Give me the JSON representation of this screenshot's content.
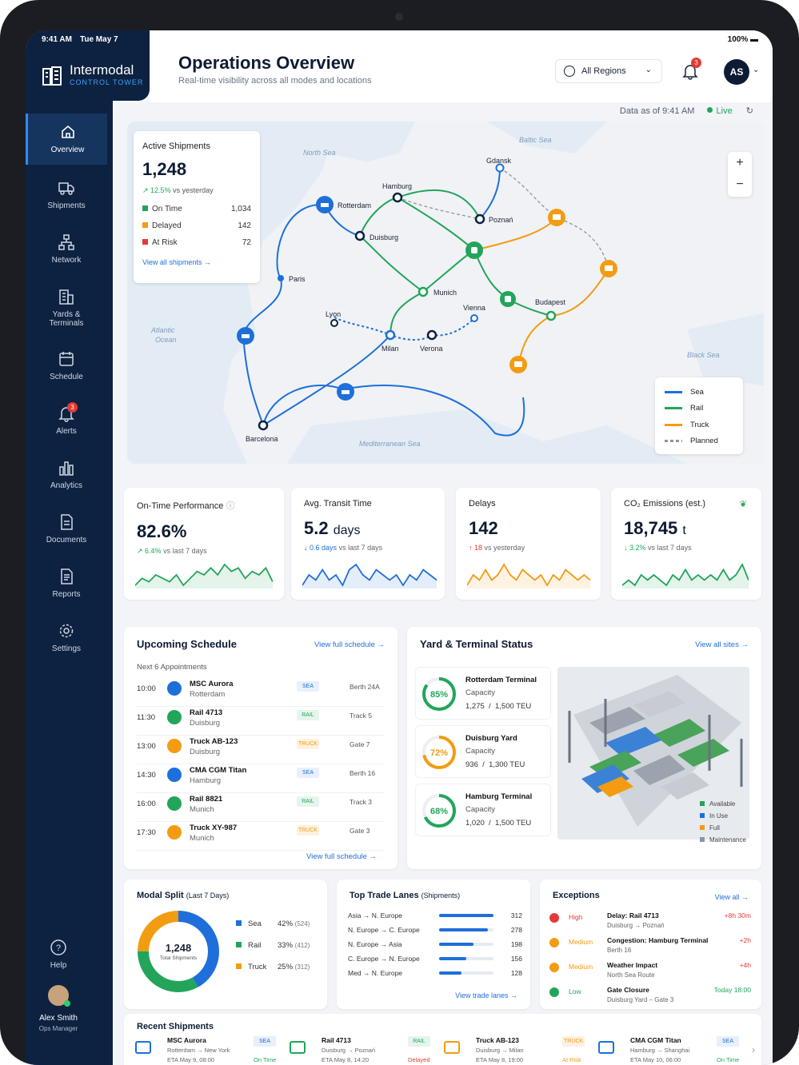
{
  "status_bar": {
    "time": "9:41 AM",
    "date": "Tue May 7",
    "battery": "100%"
  },
  "brand": {
    "name": "Intermodal",
    "sub": "CONTROL TOWER"
  },
  "sidebar": {
    "items": [
      {
        "label": "Overview",
        "icon": "home-icon"
      },
      {
        "label": "Shipments",
        "icon": "truck-icon"
      },
      {
        "label": "Network",
        "icon": "network-icon"
      },
      {
        "label": "Yards & Terminals",
        "icon": "building-icon"
      },
      {
        "label": "Schedule",
        "icon": "calendar-icon"
      },
      {
        "label": "Alerts",
        "icon": "bell-icon",
        "badge": "3"
      },
      {
        "label": "Analytics",
        "icon": "bar-chart-icon"
      },
      {
        "label": "Documents",
        "icon": "document-icon"
      },
      {
        "label": "Reports",
        "icon": "report-icon"
      },
      {
        "label": "Settings",
        "icon": "gear-icon"
      }
    ],
    "help": "Help",
    "user": {
      "name": "Alex Smith",
      "role": "Ops Manager"
    }
  },
  "header": {
    "title": "Operations Overview",
    "subtitle": "Real-time visibility across all modes and locations",
    "region": "All Regions",
    "notifications": "3",
    "initials": "AS"
  },
  "asof": {
    "label": "Data as of 9:41 AM",
    "live": "Live"
  },
  "map": {
    "seas": [
      "North Sea",
      "Baltic Sea",
      "Atlantic Ocean",
      "Black Sea",
      "Mediterranean Sea"
    ],
    "cities": [
      "Gdansk",
      "Hamburg",
      "Rotterdam",
      "Poznań",
      "Duisburg",
      "Paris",
      "Munich",
      "Vienna",
      "Budapest",
      "Lyon",
      "Milan",
      "Verona",
      "Barcelona"
    ],
    "legend": [
      "Sea",
      "Rail",
      "Truck",
      "Planned"
    ],
    "colors": {
      "sea": "#1e6fd9",
      "rail": "#22a55a",
      "truck": "#f39c12",
      "planned": "#8a96a8"
    }
  },
  "active_shipments": {
    "title": "Active Shipments",
    "value": "1,248",
    "trend": "12.5%",
    "trend_label": "vs yesterday",
    "rows": [
      {
        "label": "On Time",
        "value": "1,034"
      },
      {
        "label": "Delayed",
        "value": "142"
      },
      {
        "label": "At Risk",
        "value": "72"
      }
    ],
    "link": "View all shipments"
  },
  "kpis": [
    {
      "title": "On-Time Performance",
      "value": "82.6%",
      "unit": "",
      "trend": "6.4%",
      "trend_label": "vs last 7 days",
      "color": "#22a55a",
      "series": [
        3,
        5,
        4,
        6,
        5,
        4,
        6,
        3,
        5,
        7,
        6,
        8,
        6,
        9,
        7,
        8,
        5,
        7,
        6,
        8,
        4
      ]
    },
    {
      "title": "Avg. Transit Time",
      "value": "5.2",
      "unit": "days",
      "trend": "0.6 days",
      "trend_label": "vs last 7 days",
      "color": "#1e6fd9",
      "series": [
        4,
        6,
        5,
        7,
        5,
        6,
        4,
        7,
        8,
        6,
        5,
        7,
        6,
        5,
        6,
        4,
        6,
        5,
        7,
        6,
        5
      ]
    },
    {
      "title": "Delays",
      "value": "142",
      "unit": "",
      "trend": "18",
      "trend_label": "vs yesterday",
      "color": "#f39c12",
      "series": [
        4,
        6,
        5,
        7,
        5,
        6,
        8,
        6,
        5,
        7,
        6,
        5,
        6,
        4,
        6,
        5,
        7,
        6,
        5,
        6,
        5
      ]
    },
    {
      "title": "CO₂ Emissions (est.)",
      "value": "18,745",
      "unit": "t",
      "trend": "3.2%",
      "trend_label": "vs last 7 days",
      "color": "#22a55a",
      "series": [
        4,
        5,
        4,
        6,
        5,
        6,
        5,
        4,
        6,
        5,
        7,
        5,
        6,
        5,
        6,
        5,
        7,
        5,
        6,
        8,
        5
      ]
    }
  ],
  "schedule": {
    "title": "Upcoming Schedule",
    "link": "View full schedule",
    "subtitle": "Next 6 Appointments",
    "rows": [
      {
        "time": "10:00",
        "name": "MSC Aurora",
        "loc": "Rotterdam",
        "mode": "SEA",
        "slot": "Berth 24A"
      },
      {
        "time": "11:30",
        "name": "Rail 4713",
        "loc": "Duisburg",
        "mode": "RAIL",
        "slot": "Track 5"
      },
      {
        "time": "13:00",
        "name": "Truck AB-123",
        "loc": "Duisburg",
        "mode": "TRUCK",
        "slot": "Gate 7"
      },
      {
        "time": "14:30",
        "name": "CMA CGM Titan",
        "loc": "Hamburg",
        "mode": "SEA",
        "slot": "Berth 16"
      },
      {
        "time": "16:00",
        "name": "Rail 8821",
        "loc": "Munich",
        "mode": "RAIL",
        "slot": "Track 3"
      },
      {
        "time": "17:30",
        "name": "Truck XY-987",
        "loc": "Munich",
        "mode": "TRUCK",
        "slot": "Gate 3"
      }
    ],
    "footer_link": "View full schedule"
  },
  "yard": {
    "title": "Yard & Terminal Status",
    "link": "View all sites",
    "items": [
      {
        "name": "Rotterdam Terminal",
        "cap_label": "Capacity",
        "used": "1,275",
        "total": "1,500 TEU",
        "pct": "85%",
        "fraction": 0.85,
        "color": "#22a55a"
      },
      {
        "name": "Duisburg Yard",
        "cap_label": "Capacity",
        "used": "936",
        "total": "1,300 TEU",
        "pct": "72%",
        "fraction": 0.72,
        "color": "#f39c12"
      },
      {
        "name": "Hamburg Terminal",
        "cap_label": "Capacity",
        "used": "1,020",
        "total": "1,500 TEU",
        "pct": "68%",
        "fraction": 0.68,
        "color": "#22a55a"
      }
    ],
    "legend": [
      "Available",
      "In Use",
      "Full",
      "Maintenance"
    ]
  },
  "modal_split": {
    "title": "Modal Split",
    "period": "(Last 7 Days)",
    "total": "1,248",
    "total_label": "Total Shipments",
    "items": [
      {
        "label": "Sea",
        "pct": "42%",
        "count": "(524)",
        "value": 524,
        "color": "#1e6fd9"
      },
      {
        "label": "Rail",
        "pct": "33%",
        "count": "(412)",
        "value": 412,
        "color": "#22a55a"
      },
      {
        "label": "Truck",
        "pct": "25%",
        "count": "(312)",
        "value": 312,
        "color": "#f39c12"
      }
    ]
  },
  "trade_lanes": {
    "title": "Top Trade Lanes",
    "unit": "(Shipments)",
    "rows": [
      {
        "lane": "Asia → N. Europe",
        "value": 312
      },
      {
        "lane": "N. Europe → C. Europe",
        "value": 278
      },
      {
        "lane": "N. Europe → Asia",
        "value": 198
      },
      {
        "lane": "C. Europe → N. Europe",
        "value": 156
      },
      {
        "lane": "Med → N. Europe",
        "value": 128
      }
    ],
    "link": "View trade lanes"
  },
  "exceptions": {
    "title": "Exceptions",
    "link": "View all",
    "rows": [
      {
        "level": "High",
        "title": "Delay: Rail 4713",
        "sub": "Duisburg → Poznań",
        "time": "+8h 30m",
        "color": "#e53935"
      },
      {
        "level": "Medium",
        "title": "Congestion: Hamburg Terminal",
        "sub": "Berth 16",
        "time": "+2h",
        "color": "#f39c12"
      },
      {
        "level": "Medium",
        "title": "Weather Impact",
        "sub": "North Sea Route",
        "time": "+4h",
        "color": "#f39c12"
      },
      {
        "level": "Low",
        "title": "Gate Closure",
        "sub": "Duisburg Yard – Gate 3",
        "time": "Today 18:00",
        "color": "#22a55a"
      }
    ]
  },
  "recent": {
    "title": "Recent Shipments",
    "items": [
      {
        "name": "MSC Aurora",
        "route": "Rotterdam → New York",
        "eta": "ETA May 9, 08:00",
        "mode": "SEA",
        "status": "On Time",
        "color": "#22a55a"
      },
      {
        "name": "Rail 4713",
        "route": "Duisburg → Poznań",
        "eta": "ETA May 8, 14:20",
        "mode": "RAIL",
        "status": "Delayed",
        "color": "#e53935"
      },
      {
        "name": "Truck AB-123",
        "route": "Duisburg → Milan",
        "eta": "ETA May 8, 19:00",
        "mode": "TRUCK",
        "status": "At Risk",
        "color": "#f39c12"
      },
      {
        "name": "CMA CGM Titan",
        "route": "Hamburg → Shanghai",
        "eta": "ETA May 10, 06:00",
        "mode": "SEA",
        "status": "On Time",
        "color": "#22a55a"
      }
    ]
  }
}
